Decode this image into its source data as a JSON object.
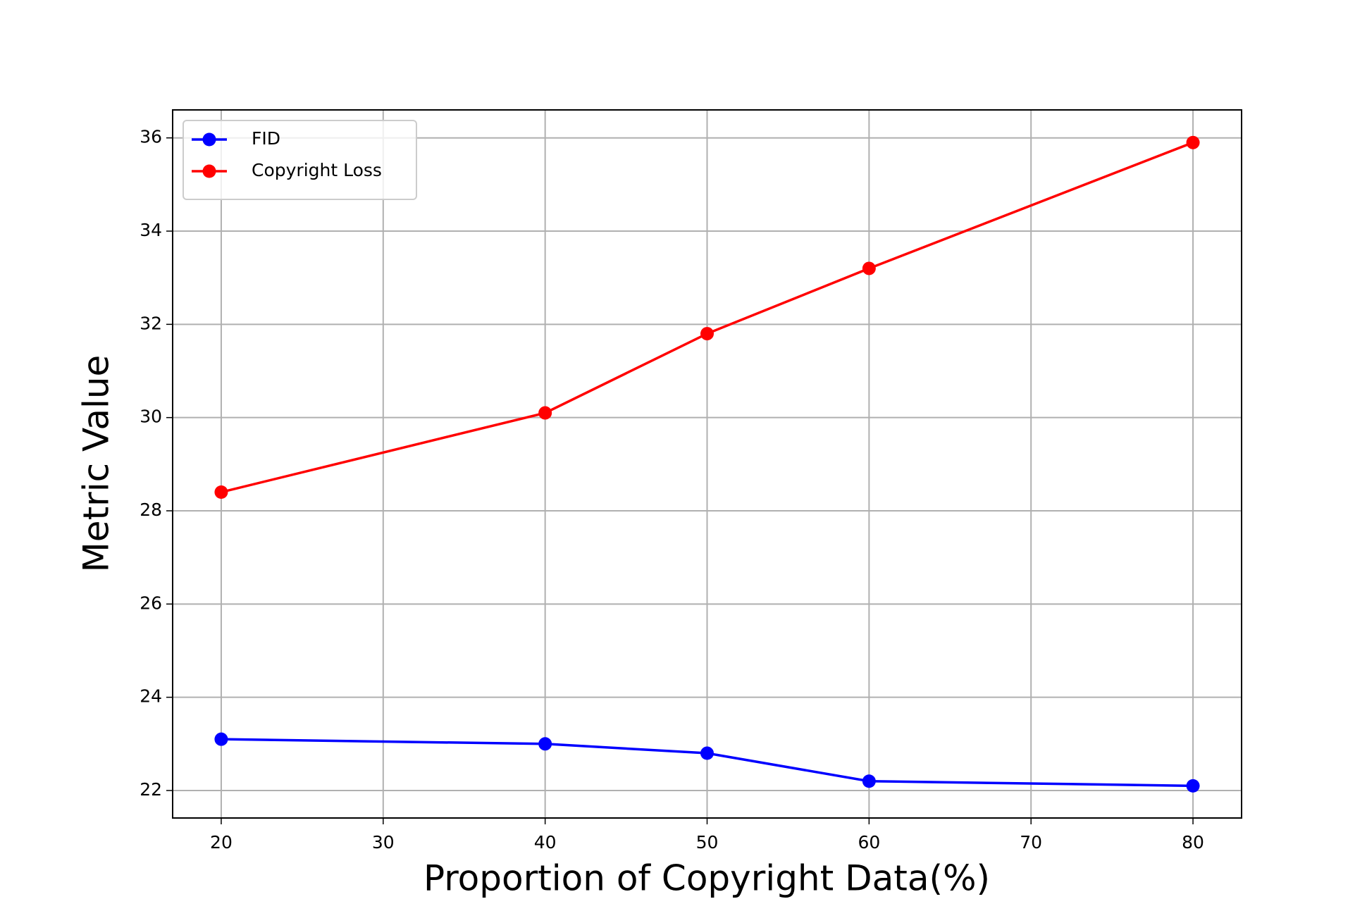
{
  "chart_data": {
    "type": "line",
    "xlabel": "Proportion of Copyright Data(%)",
    "ylabel": "Metric Value",
    "x": [
      20,
      40,
      50,
      60,
      80
    ],
    "series": [
      {
        "name": "FID",
        "color": "#0000ff",
        "values": [
          23.1,
          23.0,
          22.8,
          22.2,
          22.1
        ]
      },
      {
        "name": "Copyright Loss",
        "color": "#ff0000",
        "values": [
          28.4,
          30.1,
          31.8,
          33.2,
          35.9
        ]
      }
    ],
    "xlim": [
      17,
      83
    ],
    "xticks": [
      20,
      30,
      40,
      50,
      60,
      70,
      80
    ],
    "ylim": [
      21.41,
      36.6
    ],
    "yticks": [
      22,
      24,
      26,
      28,
      30,
      32,
      34,
      36
    ],
    "grid": true,
    "legend": "upper left"
  }
}
